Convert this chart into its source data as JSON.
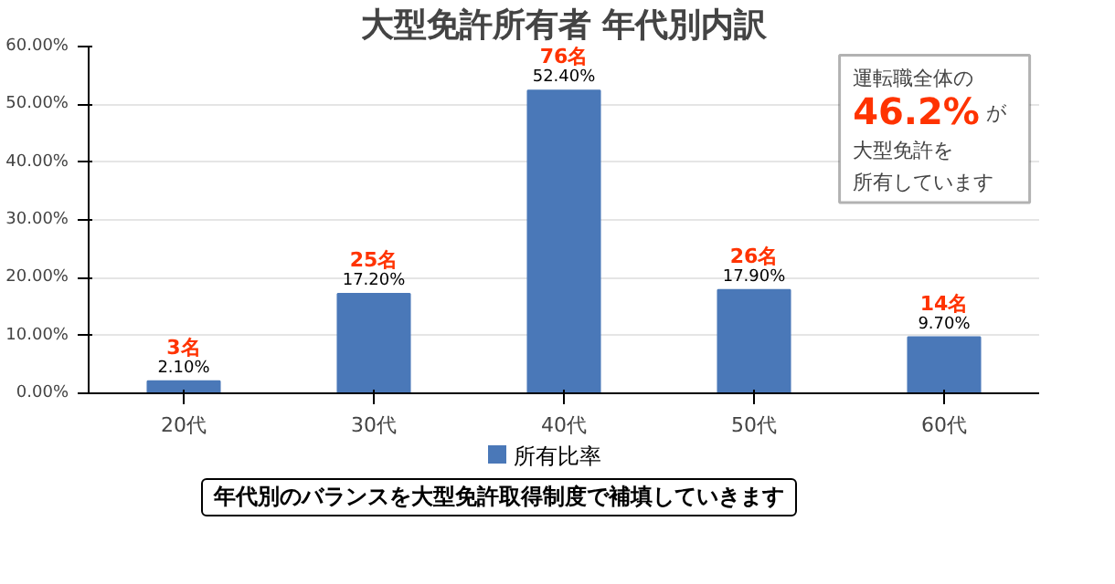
{
  "chart_data": {
    "type": "bar",
    "title": "大型免許所有者 年代別内訳",
    "categories": [
      "20代",
      "30代",
      "40代",
      "50代",
      "60代"
    ],
    "series": [
      {
        "name": "所有比率",
        "color": "#4a78b8",
        "values": [
          2.1,
          17.2,
          52.4,
          17.9,
          9.7
        ],
        "value_labels": [
          "2.10%",
          "17.20%",
          "52.40%",
          "17.90%",
          "9.70%"
        ]
      }
    ],
    "ylim": [
      0,
      60
    ],
    "yticks": [
      {
        "value": 0,
        "label": "0.00%"
      },
      {
        "value": 10,
        "label": "10.00%"
      },
      {
        "value": 20,
        "label": "20.00%"
      },
      {
        "value": 30,
        "label": "30.00%"
      },
      {
        "value": 40,
        "label": "40.00%"
      },
      {
        "value": 50,
        "label": "50.00%"
      },
      {
        "value": 60,
        "label": "60.00%"
      }
    ],
    "grid": "y",
    "legend": "bottom",
    "annotations": [
      {
        "text": "3名",
        "x": "20代",
        "y": 2.1
      },
      {
        "text": "25名",
        "x": "30代",
        "y": 17.2
      },
      {
        "text": "76名",
        "x": "40代",
        "y": 52.4
      },
      {
        "text": "26名",
        "x": "50代",
        "y": 17.9
      },
      {
        "text": "14名",
        "x": "60代",
        "y": 9.7
      },
      "運転職全体の",
      "46.2%",
      "が",
      "大型免許を",
      "所有しています",
      "年代別のバランスを大型免許取得制度で補填していきます"
    ]
  }
}
